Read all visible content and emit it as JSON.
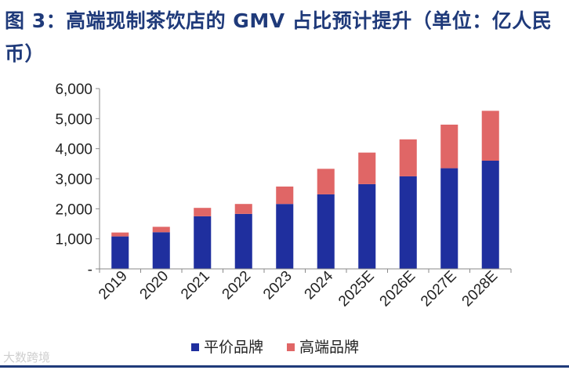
{
  "chart_data": {
    "type": "bar",
    "stacked": true,
    "title": "图 3：高端现制茶饮店的 GMV 占比预计提升（单位：亿人民币）",
    "categories": [
      "2019",
      "2020",
      "2021",
      "2022",
      "2023",
      "2024",
      "2025E",
      "2026E",
      "2027E",
      "2028E"
    ],
    "series": [
      {
        "name": "平价品牌",
        "values": [
          1080,
          1220,
          1750,
          1830,
          2160,
          2480,
          2820,
          3080,
          3350,
          3600
        ],
        "color": "#1f2f9e"
      },
      {
        "name": "高端品牌",
        "values": [
          130,
          180,
          280,
          330,
          580,
          850,
          1050,
          1230,
          1450,
          1660
        ],
        "color": "#e06666"
      }
    ],
    "ylim": [
      0,
      6000
    ],
    "yticks": [
      0,
      1000,
      2000,
      3000,
      4000,
      5000,
      6000
    ],
    "ytick_labels": [
      "-",
      "1,000",
      "2,000",
      "3,000",
      "4,000",
      "5,000",
      "6,000"
    ],
    "xlabel": "",
    "ylabel": "",
    "legend_position": "bottom-center"
  },
  "watermark": "大数跨境"
}
